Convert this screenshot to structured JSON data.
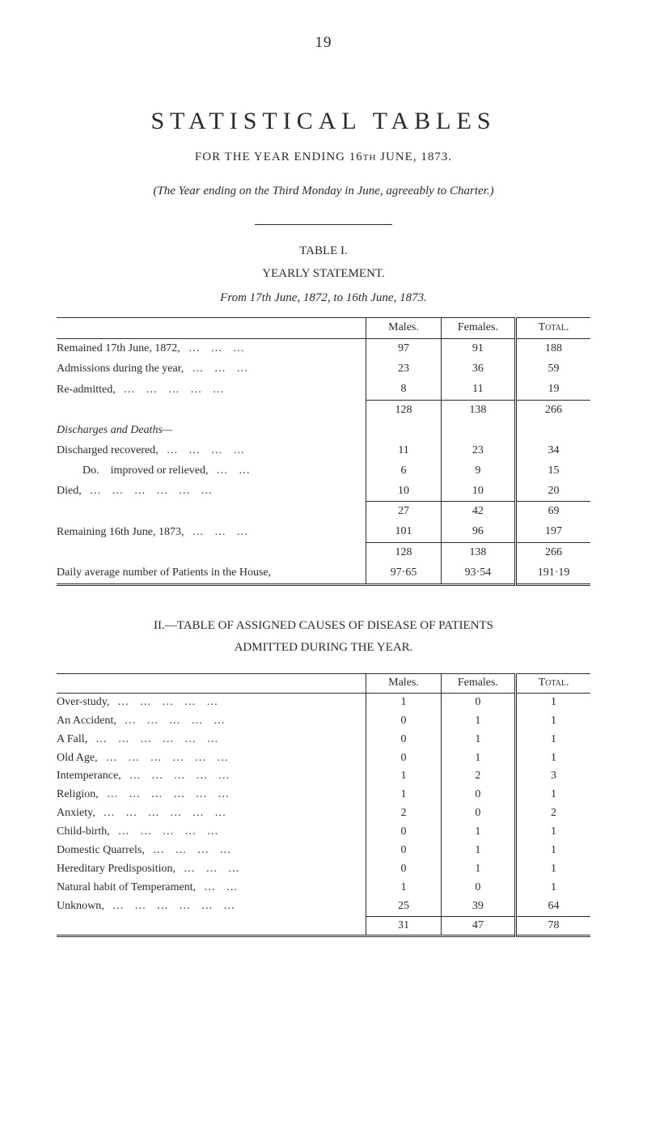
{
  "page_number": "19",
  "title": "STATISTICAL TABLES",
  "subtitle_pre": "FOR THE YEAR ENDING 16",
  "subtitle_sc": "th",
  "subtitle_post": " JUNE, 1873.",
  "italic_line": "(The Year ending on the Third Monday in June, agreeably to Charter.)",
  "table1": {
    "caption": "TABLE I.",
    "heading": "YEARLY STATEMENT.",
    "from_line": "From 17th June, 1872, to 16th June, 1873.",
    "columns": {
      "males": "Males.",
      "females": "Females.",
      "total": "Total."
    },
    "groups": [
      {
        "rows": [
          {
            "label": "Remained 17th June, 1872,",
            "dots": "…   …   …",
            "m": "97",
            "f": "91",
            "t": "188"
          },
          {
            "label": "Admissions during the year,",
            "dots": "…   …   …",
            "m": "23",
            "f": "36",
            "t": "59"
          },
          {
            "label": "Re-admitted,",
            "dots": "…   …   …   …   …",
            "m": "8",
            "f": "11",
            "t": "19"
          }
        ],
        "subtotal": {
          "m": "128",
          "f": "138",
          "t": "266"
        }
      },
      {
        "section_italic": "Discharges and Deaths—",
        "rows": [
          {
            "label": "Discharged recovered,",
            "dots": "…   …   …   …",
            "m": "11",
            "f": "23",
            "t": "34"
          },
          {
            "label_pre": "Do.",
            "label": "improved or relieved,",
            "sub": true,
            "dots": "…   …",
            "m": "6",
            "f": "9",
            "t": "15"
          },
          {
            "label": "Died,",
            "dots": "…   …   …   …   …   …",
            "m": "10",
            "f": "10",
            "t": "20"
          }
        ],
        "subtotal": {
          "m": "27",
          "f": "42",
          "t": "69"
        }
      },
      {
        "rows": [
          {
            "label": "Remaining 16th June, 1873,",
            "dots": "…   …   …",
            "m": "101",
            "f": "96",
            "t": "197"
          }
        ],
        "subtotal": {
          "m": "128",
          "f": "138",
          "t": "266"
        }
      },
      {
        "rows": [
          {
            "label": "Daily average number of Patients in the House,",
            "dots": "",
            "m": "97·65",
            "f": "93·54",
            "t": "191·19"
          }
        ]
      }
    ]
  },
  "table2": {
    "heading_line1": "II.—TABLE OF ASSIGNED CAUSES OF DISEASE OF PATIENTS",
    "heading_line2": "ADMITTED DURING THE YEAR.",
    "columns": {
      "males": "Males.",
      "females": "Females.",
      "total": "Total."
    },
    "rows": [
      {
        "label": "Over-study,",
        "dots": "…   …   …   …   …",
        "m": "1",
        "f": "0",
        "t": "1"
      },
      {
        "label": "An Accident,",
        "dots": "…   …   …   …   …",
        "m": "0",
        "f": "1",
        "t": "1"
      },
      {
        "label": "A Fall,",
        "dots": "…   …   …   …   …   …",
        "m": "0",
        "f": "1",
        "t": "1"
      },
      {
        "label": "Old Age,",
        "dots": "…   …   …   …   …   …",
        "m": "0",
        "f": "1",
        "t": "1"
      },
      {
        "label": "Intemperance,",
        "dots": "…   …   …   …   …",
        "m": "1",
        "f": "2",
        "t": "3"
      },
      {
        "label": "Religion,",
        "dots": "…   …   …   …   …   …",
        "m": "1",
        "f": "0",
        "t": "1"
      },
      {
        "label": "Anxiety,",
        "dots": "…   …   …   …   …   …",
        "m": "2",
        "f": "0",
        "t": "2"
      },
      {
        "label": "Child-birth,",
        "dots": "…   …   …   …   …",
        "m": "0",
        "f": "1",
        "t": "1"
      },
      {
        "label": "Domestic Quarrels,",
        "dots": "…   …   …   …",
        "m": "0",
        "f": "1",
        "t": "1"
      },
      {
        "label": "Hereditary Predisposition,",
        "dots": "…   …   …",
        "m": "0",
        "f": "1",
        "t": "1"
      },
      {
        "label": "Natural habit of Temperament,",
        "dots": "…   …",
        "m": "1",
        "f": "0",
        "t": "1"
      },
      {
        "label": "Unknown,",
        "dots": "…   …   …   …   …   …",
        "m": "25",
        "f": "39",
        "t": "64"
      }
    ],
    "total_row": {
      "m": "31",
      "f": "47",
      "t": "78"
    }
  }
}
